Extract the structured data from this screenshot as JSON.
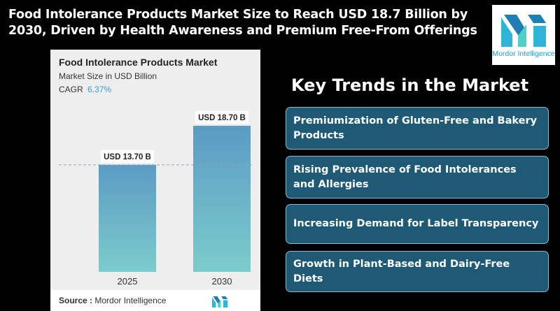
{
  "headline": "Food Intolerance Products Market Size to Reach USD 18.7 Billion by 2030, Driven by Health Awareness and Premium Free-From Offerings",
  "logo": {
    "text": "Mordor Intelligence",
    "icon": "mordor-logo-icon",
    "color": "#1d9cc9"
  },
  "chart_card": {
    "title": "Food Intolerance Products Market",
    "subtitle": "Market Size in USD Billion",
    "cagr_label": "CAGR",
    "cagr_value": "6.37%",
    "source_label": "Source :",
    "source_value": "Mordor Intelligence"
  },
  "chart_data": {
    "type": "bar",
    "categories": [
      "2025",
      "2030"
    ],
    "values": [
      13.7,
      18.7
    ],
    "data_labels": [
      "USD 13.70 B",
      "USD 18.70 B"
    ],
    "title": "Food Intolerance Products Market",
    "subtitle": "Market Size in USD Billion",
    "ylabel": "",
    "xlabel": "",
    "ylim": [
      0,
      18.7
    ],
    "reference_line": 13.7,
    "grid": false,
    "bar_color_top": "#5b9bc4",
    "bar_color_bottom": "#7ccccc"
  },
  "trends": {
    "title": "Key Trends in the Market",
    "items": [
      "Premiumization of Gluten-Free and Bakery Products",
      "Rising Prevalence of Food Intolerances and Allergies",
      "Increasing Demand for Label Transparency",
      "Growth in Plant-Based and Dairy-Free Diets"
    ]
  },
  "colors": {
    "background": "#000000",
    "trend_box": "#1e5a75",
    "trend_border": "#8fb9cf",
    "cagr_accent": "#3b9ad6"
  }
}
